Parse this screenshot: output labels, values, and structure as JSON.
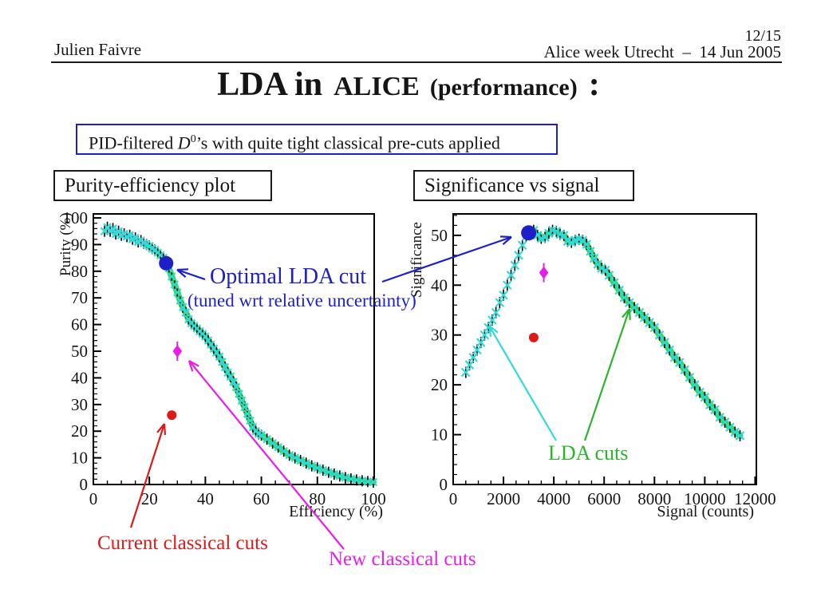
{
  "header": {
    "author": "Julien Faivre",
    "page": "12/15",
    "event": "Alice week Utrecht  –  14 Jun 2005"
  },
  "title": {
    "part1": "LDA in",
    "part2": "ALICE",
    "part3": "(performance)",
    "colon": ":"
  },
  "pid_note": {
    "prefix": "PID-filtered ",
    "symbol": "D",
    "superscript": "0",
    "suffix": "’s with quite tight classical pre-cuts applied"
  },
  "colors": {
    "blue": "#1f1fc8",
    "red": "#dc1a1a",
    "magenta": "#e81ee8",
    "cyan": "#35d8d8",
    "green_curve": "#2adf45",
    "green_text": "#2db42d",
    "axis": "#000000"
  },
  "annotations": {
    "optimal": {
      "text": "Optimal LDA cut",
      "sub": "(tuned wrt relative uncertainty)"
    },
    "current": {
      "text": "Current classical cuts"
    },
    "new_cuts": {
      "text": "New classical cuts"
    },
    "lda": {
      "text": "LDA cuts"
    }
  },
  "chart_data": [
    {
      "type": "scatter",
      "title": "Purity-efficiency plot",
      "xlabel": "Efficiency (%)",
      "ylabel": "Purity (%)",
      "xlim": [
        0,
        100
      ],
      "ylim": [
        0,
        100
      ],
      "xticks": [
        0,
        20,
        40,
        60,
        80,
        100
      ],
      "yticks": [
        0,
        10,
        20,
        30,
        40,
        50,
        60,
        70,
        80,
        90,
        100
      ],
      "x_minor_step": 5,
      "y_minor_step": 2,
      "grid": false,
      "legend": "none",
      "series": [
        {
          "name": "LDA cut scan (cyan crosses with black error bars, green band)",
          "marker": "cyan-cross",
          "band_color_from_x": 19,
          "points": [
            [
              4,
              95
            ],
            [
              5,
              96.5
            ],
            [
              6,
              95
            ],
            [
              7,
              96
            ],
            [
              8,
              94
            ],
            [
              9,
              95
            ],
            [
              10,
              93.5
            ],
            [
              11,
              94
            ],
            [
              12,
              93
            ],
            [
              13,
              93.5
            ],
            [
              14,
              92
            ],
            [
              15,
              92.5
            ],
            [
              16,
              91
            ],
            [
              17,
              91.5
            ],
            [
              18,
              90.5
            ],
            [
              19,
              90
            ],
            [
              20,
              89.5
            ],
            [
              21,
              88.5
            ],
            [
              22,
              88
            ],
            [
              23,
              87
            ],
            [
              24,
              86
            ],
            [
              25,
              85
            ],
            [
              26,
              83.5
            ],
            [
              27,
              81
            ],
            [
              28,
              78
            ],
            [
              29,
              75
            ],
            [
              30,
              72
            ],
            [
              31,
              69
            ],
            [
              32,
              66.5
            ],
            [
              33,
              64.5
            ],
            [
              34,
              62
            ],
            [
              35,
              60.5
            ],
            [
              36,
              59.5
            ],
            [
              37,
              58.5
            ],
            [
              38,
              57.5
            ],
            [
              39,
              56.5
            ],
            [
              40,
              55.5
            ],
            [
              41,
              54
            ],
            [
              42,
              52.5
            ],
            [
              43,
              51
            ],
            [
              44,
              49.5
            ],
            [
              45,
              48
            ],
            [
              46,
              46
            ],
            [
              47,
              44
            ],
            [
              48,
              42
            ],
            [
              49,
              40.5
            ],
            [
              50,
              38.5
            ],
            [
              51,
              36.5
            ],
            [
              52,
              34
            ],
            [
              53,
              31.5
            ],
            [
              54,
              29
            ],
            [
              55,
              26.5
            ],
            [
              56,
              24
            ],
            [
              57,
              21.5
            ],
            [
              58,
              20
            ],
            [
              59,
              19
            ],
            [
              60,
              18.5
            ],
            [
              62,
              17
            ],
            [
              64,
              15.5
            ],
            [
              66,
              14
            ],
            [
              68,
              12.5
            ],
            [
              70,
              11
            ],
            [
              72,
              10
            ],
            [
              74,
              9
            ],
            [
              76,
              8
            ],
            [
              78,
              7
            ],
            [
              80,
              6.2
            ],
            [
              82,
              5.4
            ],
            [
              84,
              4.6
            ],
            [
              86,
              3.9
            ],
            [
              88,
              3.2
            ],
            [
              90,
              2.6
            ],
            [
              92,
              2.1
            ],
            [
              94,
              1.7
            ],
            [
              96,
              1.4
            ],
            [
              98,
              1.1
            ],
            [
              100,
              0.9
            ]
          ]
        }
      ],
      "markers": [
        {
          "label": "Optimal LDA cut",
          "x": 26,
          "y": 83,
          "shape": "circle",
          "color_key": "blue",
          "size": 9
        },
        {
          "label": "New classical cuts",
          "x": 30,
          "y": 50,
          "shape": "diamond",
          "color_key": "magenta",
          "size": 8
        },
        {
          "label": "Current classical cuts",
          "x": 28,
          "y": 26,
          "shape": "circle",
          "color_key": "red",
          "size": 6
        }
      ]
    },
    {
      "type": "scatter",
      "title": "Significance vs signal",
      "xlabel": "Signal (counts)",
      "ylabel": "Significance",
      "xlim": [
        0,
        12000
      ],
      "ylim": [
        0,
        54
      ],
      "xticks": [
        0,
        2000,
        4000,
        6000,
        8000,
        10000,
        12000
      ],
      "yticks": [
        0,
        10,
        20,
        30,
        40,
        50
      ],
      "x_minor_step": 500,
      "y_minor_step": 2,
      "grid": false,
      "legend": "none",
      "series": [
        {
          "name": "LDA cut scan (cyan crosses with black error bars, green band)",
          "marker": "cyan-cross",
          "band_color_from_x": 2900,
          "points": [
            [
              500,
              22.5
            ],
            [
              650,
              24
            ],
            [
              800,
              25.5
            ],
            [
              950,
              27
            ],
            [
              1100,
              28.5
            ],
            [
              1250,
              30
            ],
            [
              1400,
              31.5
            ],
            [
              1550,
              33
            ],
            [
              1700,
              34.5
            ],
            [
              1850,
              36.5
            ],
            [
              2000,
              38
            ],
            [
              2150,
              40
            ],
            [
              2300,
              42
            ],
            [
              2450,
              44
            ],
            [
              2600,
              46
            ],
            [
              2750,
              48
            ],
            [
              2900,
              49.8
            ],
            [
              3050,
              50.6
            ],
            [
              3200,
              51
            ],
            [
              3350,
              50
            ],
            [
              3500,
              49.4
            ],
            [
              3650,
              49.6
            ],
            [
              3800,
              50.4
            ],
            [
              3950,
              51
            ],
            [
              4100,
              50.8
            ],
            [
              4250,
              50.2
            ],
            [
              4400,
              50
            ],
            [
              4550,
              48.8
            ],
            [
              4700,
              48.6
            ],
            [
              4850,
              49
            ],
            [
              5000,
              49.2
            ],
            [
              5150,
              49
            ],
            [
              5300,
              48.2
            ],
            [
              5450,
              46.8
            ],
            [
              5600,
              45.4
            ],
            [
              5750,
              44.2
            ],
            [
              5900,
              43.4
            ],
            [
              6050,
              43
            ],
            [
              6200,
              42
            ],
            [
              6400,
              40.5
            ],
            [
              6600,
              39
            ],
            [
              6800,
              37.5
            ],
            [
              7000,
              36.5
            ],
            [
              7200,
              35.5
            ],
            [
              7400,
              34.5
            ],
            [
              7600,
              33.5
            ],
            [
              7800,
              32.5
            ],
            [
              8000,
              31.5
            ],
            [
              8200,
              30
            ],
            [
              8400,
              28.5
            ],
            [
              8600,
              27
            ],
            [
              8800,
              25.5
            ],
            [
              9000,
              24.5
            ],
            [
              9200,
              23
            ],
            [
              9400,
              21.5
            ],
            [
              9600,
              20
            ],
            [
              9800,
              18.5
            ],
            [
              10000,
              17.5
            ],
            [
              10200,
              16
            ],
            [
              10400,
              15
            ],
            [
              10600,
              13.5
            ],
            [
              10800,
              12.5
            ],
            [
              11000,
              11.5
            ],
            [
              11200,
              10.5
            ],
            [
              11400,
              9.8
            ]
          ]
        }
      ],
      "markers": [
        {
          "label": "Optimal LDA cut",
          "x": 3000,
          "y": 50.5,
          "shape": "circle",
          "color_key": "blue",
          "size": 9.5
        },
        {
          "label": "New classical cuts",
          "x": 3600,
          "y": 42.5,
          "shape": "diamond",
          "color_key": "magenta",
          "size": 8
        },
        {
          "label": "Current classical cuts",
          "x": 3200,
          "y": 29.5,
          "shape": "circle",
          "color_key": "red",
          "size": 6
        }
      ]
    }
  ]
}
